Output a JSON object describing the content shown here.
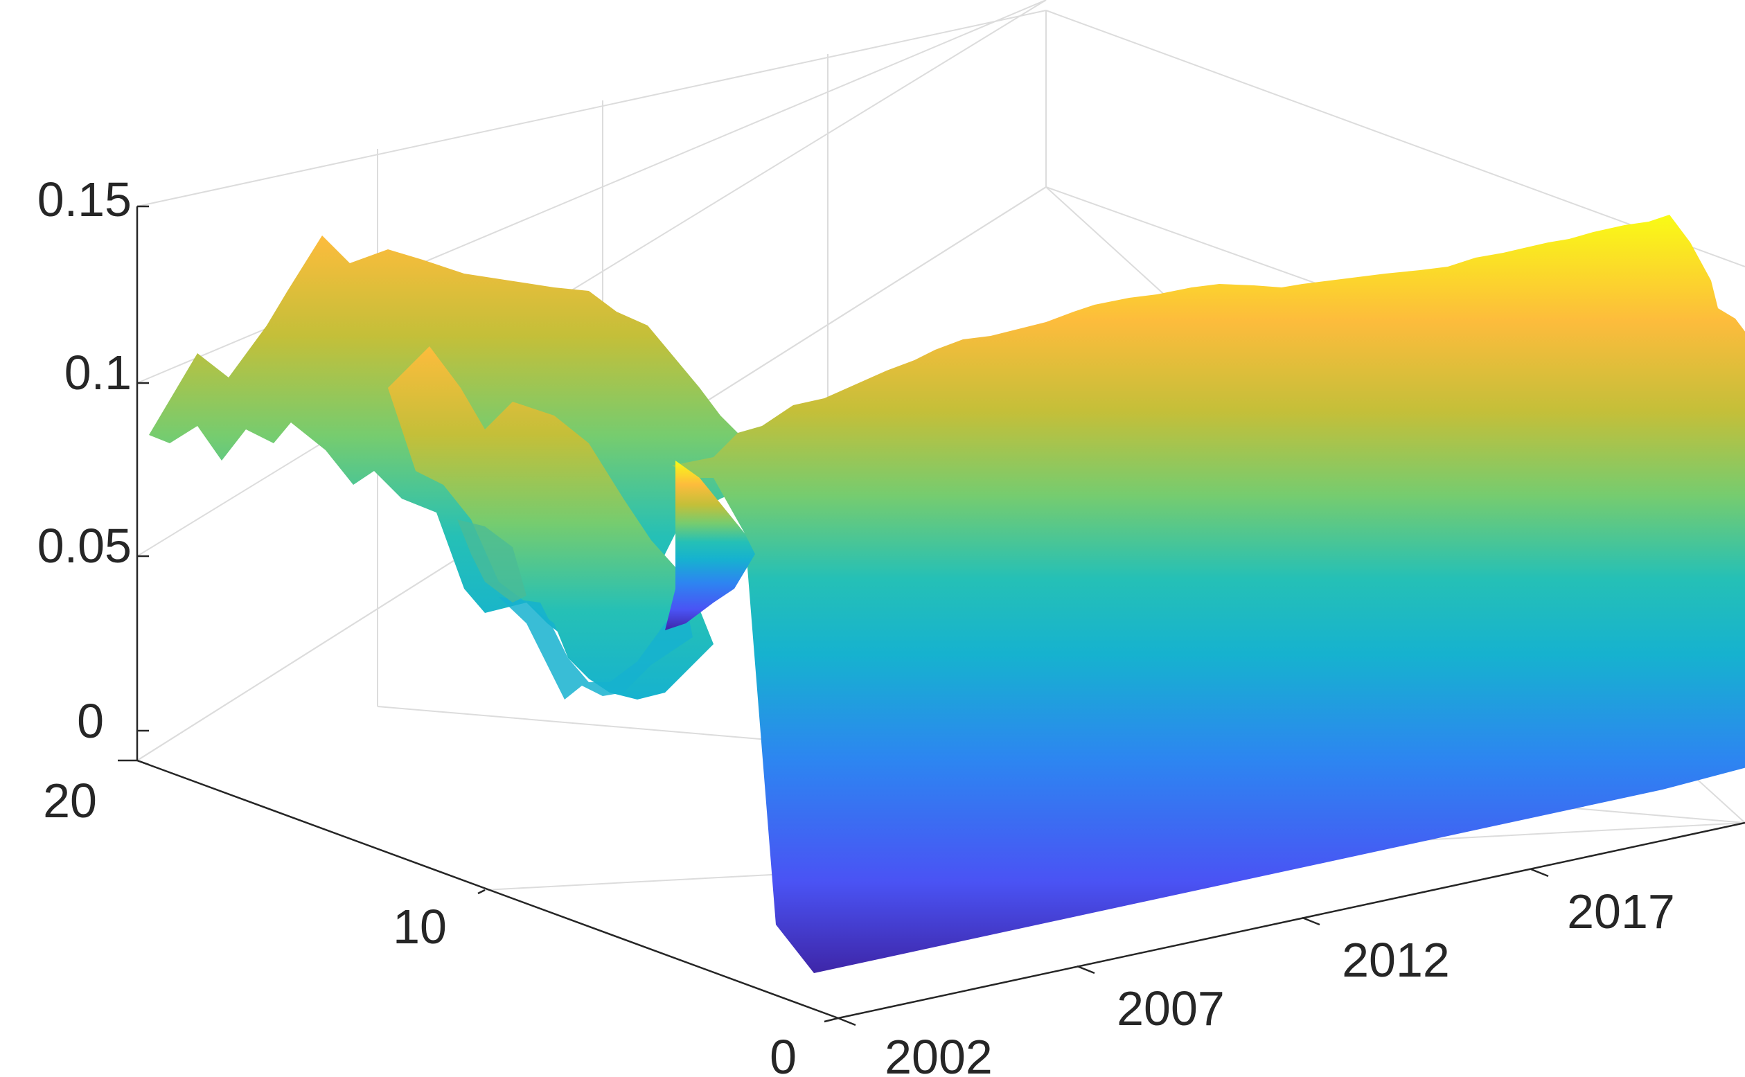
{
  "chart_data": {
    "type": "surface",
    "title": "",
    "xlabel": "",
    "ylabel": "",
    "zlabel": "",
    "x_ticks": [
      "2002",
      "2007",
      "2012",
      "2017"
    ],
    "y_ticks": [
      "0",
      "10",
      "20"
    ],
    "z_ticks": [
      "0",
      "0.05",
      "0.1",
      "0.15"
    ],
    "x_range": [
      2002,
      2020
    ],
    "y_range": [
      0,
      20
    ],
    "z_range": [
      0,
      0.15
    ],
    "grid": true,
    "colormap": "parula",
    "colormap_stops": [
      "#3e26a8",
      "#4a53f4",
      "#2d85f1",
      "#16b2cf",
      "#25c0b6",
      "#76cc6f",
      "#c4bf39",
      "#fdbc3c",
      "#f9fb15"
    ],
    "front_edge_row_y0": {
      "x_samples": [
        2002,
        2004,
        2006,
        2008,
        2010,
        2012,
        2014,
        2016,
        2018,
        2019,
        2020
      ],
      "z_values": [
        0.11,
        0.112,
        0.114,
        0.118,
        0.121,
        0.123,
        0.125,
        0.127,
        0.131,
        0.12,
        0.11
      ]
    },
    "back_ridge_y20": {
      "x_samples": [
        2002,
        2004,
        2006,
        2008,
        2010,
        2012,
        2014,
        2016,
        2018,
        2020
      ],
      "z_values": [
        0.09,
        0.1,
        0.125,
        0.117,
        0.116,
        0.114,
        0.105,
        0.095,
        0.09,
        0.085
      ]
    },
    "min_trough": {
      "x": 2011,
      "y": 13,
      "z": 0.025
    }
  },
  "colors": {
    "axis": "#262626",
    "grid": "#dcdcdc"
  }
}
